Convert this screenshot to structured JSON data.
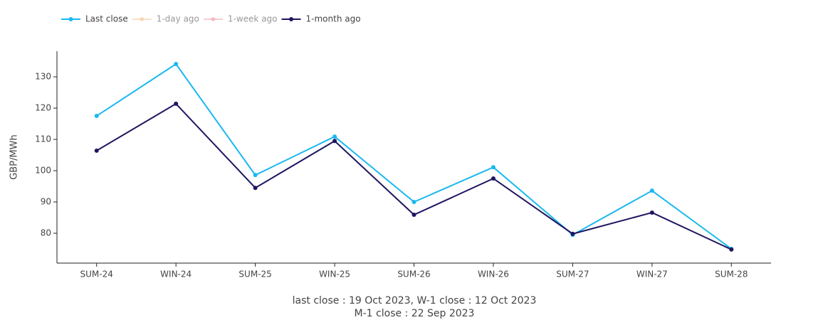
{
  "chart_data": {
    "type": "line",
    "y_label": "GBP/MWh",
    "categories": [
      "SUM-24",
      "WIN-24",
      "SUM-25",
      "WIN-25",
      "SUM-26",
      "WIN-26",
      "SUM-27",
      "WIN-27",
      "SUM-28"
    ],
    "series": [
      {
        "name": "Last close",
        "color": "#1ab8f0",
        "visible": true,
        "values": [
          117.5,
          134.1,
          98.6,
          110.9,
          90.0,
          101.1,
          79.5,
          93.6,
          75.0
        ]
      },
      {
        "name": "1-day ago",
        "color": "#f5c18f",
        "visible": false,
        "values": [
          null,
          null,
          null,
          null,
          null,
          null,
          null,
          null,
          null
        ]
      },
      {
        "name": "1-week ago",
        "color": "#f09ba0",
        "visible": false,
        "values": [
          null,
          null,
          null,
          null,
          null,
          null,
          null,
          null,
          null
        ]
      },
      {
        "name": "1-month ago",
        "color": "#1e1660",
        "visible": true,
        "values": [
          106.4,
          121.4,
          94.5,
          109.5,
          85.9,
          97.5,
          79.8,
          86.6,
          74.8
        ]
      }
    ],
    "ylim": [
      70.45,
      138.2
    ],
    "yticks": [
      80,
      90,
      100,
      110,
      120,
      130
    ],
    "grid": false,
    "legend": "top",
    "annotations": [
      "last close : 19 Oct 2023, W-1 close : 12 Oct 2023",
      "M-1 close : 22 Sep 2023"
    ]
  }
}
